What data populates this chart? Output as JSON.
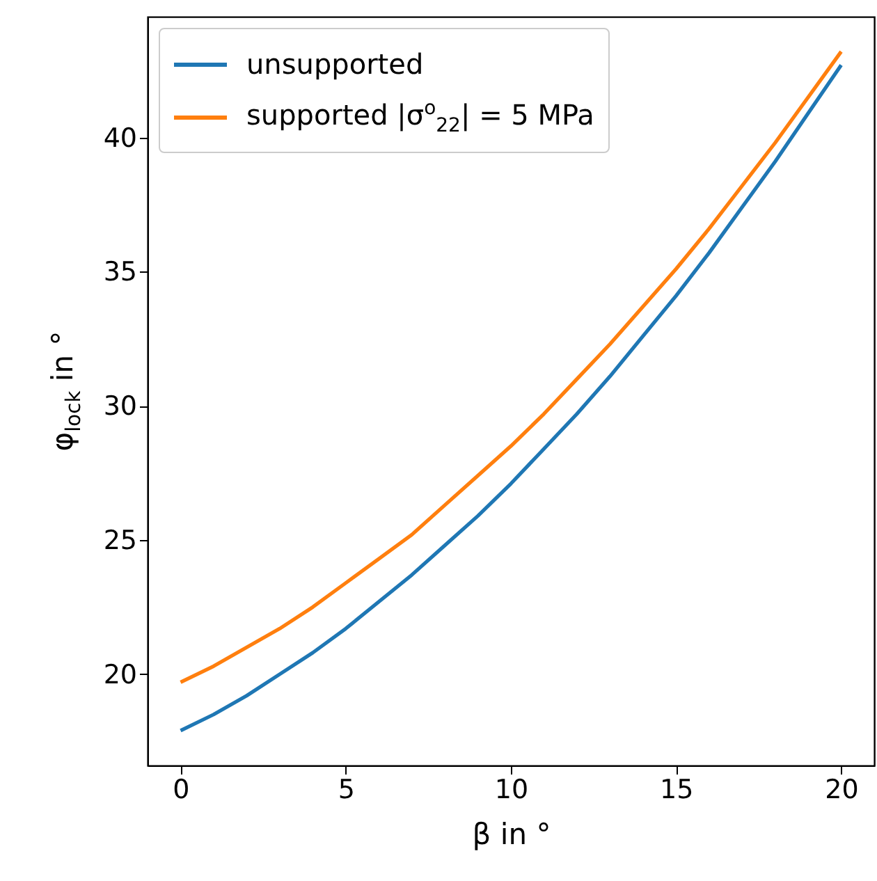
{
  "chart_data": {
    "type": "line",
    "xlabel": "β in °",
    "ylabel": "φ$_{lock}$ in °",
    "x": [
      0,
      1,
      2,
      3,
      4,
      5,
      6,
      7,
      8,
      9,
      10,
      11,
      12,
      13,
      14,
      15,
      16,
      17,
      18,
      19,
      20
    ],
    "series": [
      {
        "name": "unsupported",
        "color": "#1f77b4",
        "values": [
          17.9,
          18.5,
          19.2,
          20.0,
          20.8,
          21.7,
          22.7,
          23.7,
          24.8,
          25.9,
          27.1,
          28.4,
          29.7,
          31.1,
          32.6,
          34.1,
          35.7,
          37.4,
          39.1,
          40.9,
          42.7
        ]
      },
      {
        "name": "supported |σ$^{o}$$_{22}$| = 5 MPa",
        "color": "#ff7f0e",
        "values": [
          19.7,
          20.3,
          21.0,
          21.7,
          22.5,
          23.4,
          24.3,
          25.2,
          26.3,
          27.4,
          28.5,
          29.7,
          31.0,
          32.3,
          33.7,
          35.1,
          36.6,
          38.2,
          39.8,
          41.5,
          43.2
        ]
      }
    ],
    "xlim": [
      -1,
      21
    ],
    "ylim": [
      16.6,
      44.5
    ],
    "xticks": [
      0,
      5,
      10,
      15,
      20
    ],
    "yticks": [
      20,
      25,
      30,
      35,
      40
    ],
    "legend": "top left",
    "grid": false,
    "marker": "none",
    "line_style": "solid"
  }
}
